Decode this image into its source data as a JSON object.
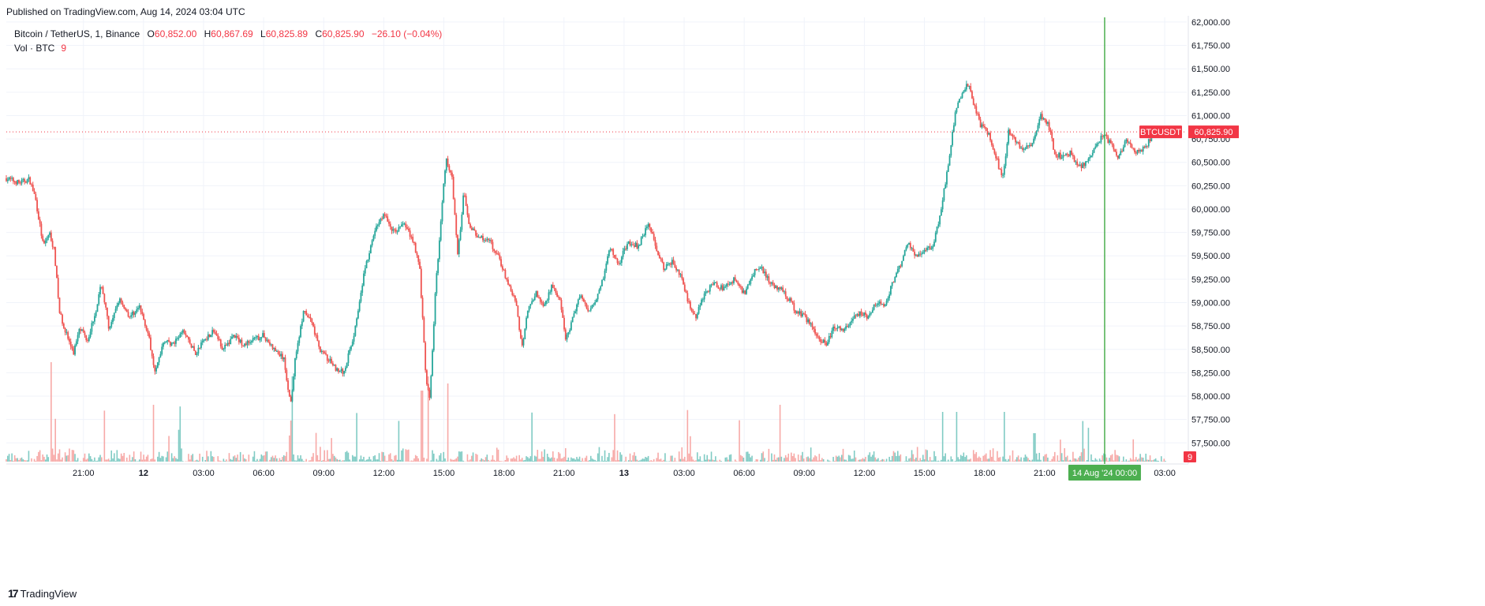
{
  "published": "Published on TradingView.com, Aug 14, 2024 03:04 UTC",
  "legend": {
    "symbol": "Bitcoin / TetherUS, 1, Binance",
    "o_label": "O",
    "o_value": "60,852.00",
    "h_label": "H",
    "h_value": "60,867.69",
    "l_label": "L",
    "l_value": "60,825.89",
    "c_label": "C",
    "c_value": "60,825.90",
    "change": "−26.10 (−0.04%)",
    "vol_label": "Vol · BTC",
    "vol_value": "9"
  },
  "price_badge": {
    "ticker": "BTCUSDT",
    "price": "60,825.90"
  },
  "volume_badge": "9",
  "crosshair_label": {
    "date": "14 Aug '24",
    "time": "00:00"
  },
  "footer": {
    "logo_mark": "17",
    "brand": "TradingView"
  },
  "colors": {
    "up": "#26a69a",
    "down": "#ef5350",
    "vol_up": "#80cbc4",
    "vol_down": "#f7a9a7",
    "crosshair": "#4caf50",
    "price_line": "#f23645",
    "grid": "#f0f3fa"
  },
  "chart_data": {
    "type": "candlestick",
    "title": "Bitcoin / TetherUS, 1, Binance",
    "interval": "1 minute",
    "last_price": 60825.9,
    "ylim": [
      57300,
      62050
    ],
    "y_ticks": [
      62000,
      61750,
      61500,
      61250,
      61000,
      60750,
      60500,
      60250,
      60000,
      59750,
      59500,
      59250,
      59000,
      58750,
      58500,
      58250,
      58000,
      57750,
      57500
    ],
    "y_tick_labels": [
      "62,000.00",
      "61,750.00",
      "61,500.00",
      "61,250.00",
      "61,000.00",
      "60,750.00",
      "60,500.00",
      "60,250.00",
      "60,000.00",
      "59,750.00",
      "59,500.00",
      "59,250.00",
      "59,000.00",
      "58,750.00",
      "58,500.00",
      "58,250.00",
      "58,000.00",
      "57,750.00",
      "57,500.00"
    ],
    "x_tick_labels": [
      "21:00",
      "12",
      "03:00",
      "06:00",
      "09:00",
      "12:00",
      "15:00",
      "18:00",
      "21:00",
      "13",
      "03:00",
      "06:00",
      "09:00",
      "12:00",
      "15:00",
      "18:00",
      "21:00",
      "03:00"
    ],
    "x_tick_hours": [
      21,
      24,
      27,
      30,
      33,
      36,
      39,
      42,
      45,
      48,
      51,
      54,
      57,
      60,
      63,
      66,
      69,
      75
    ],
    "x_range_hours": [
      17.15,
      76.1
    ],
    "bold_ticks": [
      "12",
      "13"
    ],
    "price_path": [
      {
        "t": 17.15,
        "p": 60330
      },
      {
        "t": 17.8,
        "p": 60280
      },
      {
        "t": 18.3,
        "p": 60320
      },
      {
        "t": 18.6,
        "p": 60120
      },
      {
        "t": 19.0,
        "p": 59600
      },
      {
        "t": 19.3,
        "p": 59750
      },
      {
        "t": 19.55,
        "p": 59550
      },
      {
        "t": 19.8,
        "p": 58900
      },
      {
        "t": 20.1,
        "p": 58700
      },
      {
        "t": 20.5,
        "p": 58450
      },
      {
        "t": 20.8,
        "p": 58750
      },
      {
        "t": 21.2,
        "p": 58600
      },
      {
        "t": 21.6,
        "p": 58900
      },
      {
        "t": 21.9,
        "p": 59200
      },
      {
        "t": 22.3,
        "p": 58700
      },
      {
        "t": 22.8,
        "p": 59050
      },
      {
        "t": 23.3,
        "p": 58850
      },
      {
        "t": 23.8,
        "p": 58950
      },
      {
        "t": 24.2,
        "p": 58700
      },
      {
        "t": 24.6,
        "p": 58250
      },
      {
        "t": 25.0,
        "p": 58600
      },
      {
        "t": 25.5,
        "p": 58550
      },
      {
        "t": 26.0,
        "p": 58700
      },
      {
        "t": 26.6,
        "p": 58450
      },
      {
        "t": 27.0,
        "p": 58600
      },
      {
        "t": 27.5,
        "p": 58700
      },
      {
        "t": 28.0,
        "p": 58500
      },
      {
        "t": 28.5,
        "p": 58650
      },
      {
        "t": 29.0,
        "p": 58550
      },
      {
        "t": 29.5,
        "p": 58600
      },
      {
        "t": 30.0,
        "p": 58650
      },
      {
        "t": 30.5,
        "p": 58500
      },
      {
        "t": 31.0,
        "p": 58400
      },
      {
        "t": 31.35,
        "p": 57900
      },
      {
        "t": 31.6,
        "p": 58450
      },
      {
        "t": 32.0,
        "p": 58900
      },
      {
        "t": 32.4,
        "p": 58800
      },
      {
        "t": 32.8,
        "p": 58500
      },
      {
        "t": 33.2,
        "p": 58400
      },
      {
        "t": 33.6,
        "p": 58300
      },
      {
        "t": 34.0,
        "p": 58250
      },
      {
        "t": 34.5,
        "p": 58650
      },
      {
        "t": 35.0,
        "p": 59300
      },
      {
        "t": 35.6,
        "p": 59800
      },
      {
        "t": 36.0,
        "p": 59950
      },
      {
        "t": 36.5,
        "p": 59750
      },
      {
        "t": 37.0,
        "p": 59850
      },
      {
        "t": 37.5,
        "p": 59650
      },
      {
        "t": 37.8,
        "p": 59350
      },
      {
        "t": 38.1,
        "p": 58200
      },
      {
        "t": 38.3,
        "p": 57950
      },
      {
        "t": 38.6,
        "p": 59200
      },
      {
        "t": 38.9,
        "p": 60000
      },
      {
        "t": 39.1,
        "p": 60550
      },
      {
        "t": 39.4,
        "p": 60350
      },
      {
        "t": 39.7,
        "p": 59500
      },
      {
        "t": 40.0,
        "p": 60200
      },
      {
        "t": 40.3,
        "p": 59800
      },
      {
        "t": 40.8,
        "p": 59700
      },
      {
        "t": 41.3,
        "p": 59650
      },
      {
        "t": 41.8,
        "p": 59450
      },
      {
        "t": 42.2,
        "p": 59200
      },
      {
        "t": 42.6,
        "p": 59000
      },
      {
        "t": 42.9,
        "p": 58500
      },
      {
        "t": 43.2,
        "p": 58950
      },
      {
        "t": 43.6,
        "p": 59100
      },
      {
        "t": 44.0,
        "p": 58950
      },
      {
        "t": 44.4,
        "p": 59200
      },
      {
        "t": 44.8,
        "p": 59000
      },
      {
        "t": 45.1,
        "p": 58600
      },
      {
        "t": 45.4,
        "p": 58800
      },
      {
        "t": 45.8,
        "p": 59100
      },
      {
        "t": 46.2,
        "p": 58900
      },
      {
        "t": 46.6,
        "p": 59050
      },
      {
        "t": 47.0,
        "p": 59300
      },
      {
        "t": 47.3,
        "p": 59600
      },
      {
        "t": 47.7,
        "p": 59400
      },
      {
        "t": 48.2,
        "p": 59650
      },
      {
        "t": 48.7,
        "p": 59600
      },
      {
        "t": 49.2,
        "p": 59850
      },
      {
        "t": 49.6,
        "p": 59600
      },
      {
        "t": 50.0,
        "p": 59350
      },
      {
        "t": 50.4,
        "p": 59450
      },
      {
        "t": 50.8,
        "p": 59300
      },
      {
        "t": 51.2,
        "p": 59000
      },
      {
        "t": 51.6,
        "p": 58850
      },
      {
        "t": 52.0,
        "p": 59100
      },
      {
        "t": 52.5,
        "p": 59200
      },
      {
        "t": 53.0,
        "p": 59150
      },
      {
        "t": 53.5,
        "p": 59250
      },
      {
        "t": 54.0,
        "p": 59100
      },
      {
        "t": 54.4,
        "p": 59300
      },
      {
        "t": 54.8,
        "p": 59400
      },
      {
        "t": 55.3,
        "p": 59200
      },
      {
        "t": 55.8,
        "p": 59150
      },
      {
        "t": 56.2,
        "p": 59050
      },
      {
        "t": 56.6,
        "p": 58900
      },
      {
        "t": 57.0,
        "p": 58850
      },
      {
        "t": 57.4,
        "p": 58750
      },
      {
        "t": 57.8,
        "p": 58600
      },
      {
        "t": 58.1,
        "p": 58550
      },
      {
        "t": 58.5,
        "p": 58750
      },
      {
        "t": 58.9,
        "p": 58700
      },
      {
        "t": 59.3,
        "p": 58800
      },
      {
        "t": 59.8,
        "p": 58900
      },
      {
        "t": 60.2,
        "p": 58850
      },
      {
        "t": 60.6,
        "p": 59000
      },
      {
        "t": 61.0,
        "p": 58950
      },
      {
        "t": 61.4,
        "p": 59200
      },
      {
        "t": 61.8,
        "p": 59400
      },
      {
        "t": 62.2,
        "p": 59650
      },
      {
        "t": 62.6,
        "p": 59500
      },
      {
        "t": 63.0,
        "p": 59550
      },
      {
        "t": 63.4,
        "p": 59600
      },
      {
        "t": 63.8,
        "p": 59950
      },
      {
        "t": 64.2,
        "p": 60500
      },
      {
        "t": 64.6,
        "p": 61100
      },
      {
        "t": 64.9,
        "p": 61250
      },
      {
        "t": 65.2,
        "p": 61350
      },
      {
        "t": 65.5,
        "p": 61100
      },
      {
        "t": 65.8,
        "p": 60900
      },
      {
        "t": 66.2,
        "p": 60800
      },
      {
        "t": 66.6,
        "p": 60550
      },
      {
        "t": 66.9,
        "p": 60300
      },
      {
        "t": 67.2,
        "p": 60850
      },
      {
        "t": 67.6,
        "p": 60700
      },
      {
        "t": 68.0,
        "p": 60650
      },
      {
        "t": 68.4,
        "p": 60700
      },
      {
        "t": 68.8,
        "p": 61000
      },
      {
        "t": 69.2,
        "p": 60900
      },
      {
        "t": 69.5,
        "p": 60600
      },
      {
        "t": 69.9,
        "p": 60550
      },
      {
        "t": 70.3,
        "p": 60600
      },
      {
        "t": 70.7,
        "p": 60450
      },
      {
        "t": 71.1,
        "p": 60500
      },
      {
        "t": 71.5,
        "p": 60650
      },
      {
        "t": 71.9,
        "p": 60800
      },
      {
        "t": 72.3,
        "p": 60700
      },
      {
        "t": 72.7,
        "p": 60550
      },
      {
        "t": 73.1,
        "p": 60750
      },
      {
        "t": 73.5,
        "p": 60600
      },
      {
        "t": 74.0,
        "p": 60650
      },
      {
        "t": 74.4,
        "p": 60800
      },
      {
        "t": 74.8,
        "p": 60830
      },
      {
        "t": 75.1,
        "p": 60826
      }
    ],
    "price_line": 60825.9,
    "crosshair_hour": 72.0,
    "volume_note": "per-minute volume bars at bottom, mostly small with spikes near 38-39h and 64-65h",
    "volume_spikes": [
      {
        "t": 19.4,
        "v": 14
      },
      {
        "t": 24.5,
        "v": 8
      },
      {
        "t": 31.4,
        "v": 12
      },
      {
        "t": 37.9,
        "v": 10
      },
      {
        "t": 38.2,
        "v": 12
      },
      {
        "t": 39.2,
        "v": 11
      },
      {
        "t": 55.8,
        "v": 8
      },
      {
        "t": 63.9,
        "v": 7
      },
      {
        "t": 64.6,
        "v": 7
      },
      {
        "t": 67.0,
        "v": 7
      },
      {
        "t": 68.5,
        "v": 4
      }
    ]
  }
}
